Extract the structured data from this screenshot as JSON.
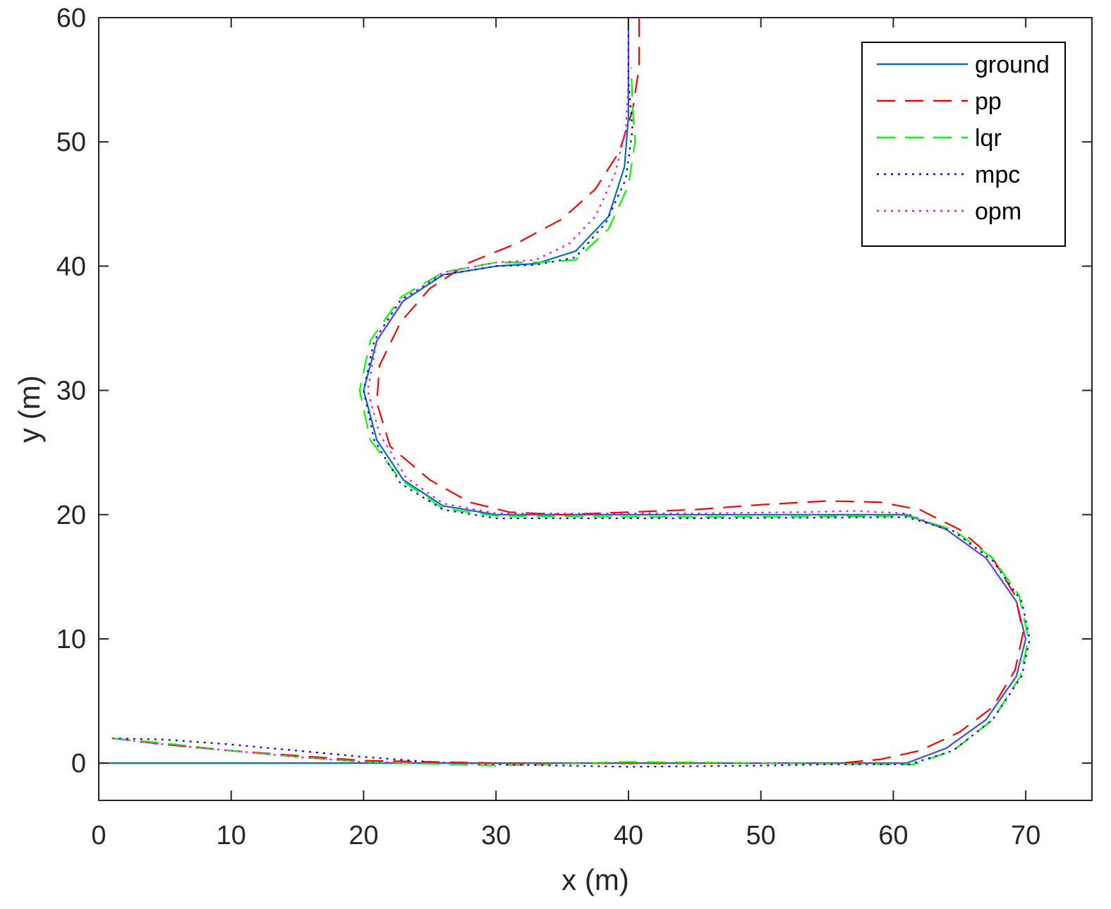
{
  "chart_data": {
    "type": "line",
    "title": "",
    "xlabel": "x (m)",
    "ylabel": "y (m)",
    "xlim": [
      0,
      75
    ],
    "ylim": [
      -3,
      60
    ],
    "xticks": [
      "0",
      "10",
      "20",
      "30",
      "40",
      "50",
      "60",
      "70"
    ],
    "yticks": [
      "0",
      "10",
      "20",
      "30",
      "40",
      "50",
      "60"
    ],
    "grid": false,
    "legend_position": "top-right",
    "series": [
      {
        "name": "ground",
        "color": "#0072BD",
        "style": "solid",
        "points": [
          [
            0,
            0
          ],
          [
            20,
            0
          ],
          [
            40,
            0
          ],
          [
            61,
            0
          ],
          [
            64,
            1.2
          ],
          [
            67,
            3.5
          ],
          [
            69.3,
            7
          ],
          [
            70,
            10
          ],
          [
            69.3,
            13
          ],
          [
            67,
            16.5
          ],
          [
            64,
            18.8
          ],
          [
            61,
            20
          ],
          [
            45,
            20
          ],
          [
            30,
            20
          ],
          [
            26,
            20.7
          ],
          [
            23,
            22.8
          ],
          [
            21,
            26
          ],
          [
            20,
            30
          ],
          [
            21,
            34
          ],
          [
            23,
            37.2
          ],
          [
            26,
            39.3
          ],
          [
            30,
            40
          ],
          [
            33,
            40.2
          ],
          [
            36,
            41.2
          ],
          [
            38.5,
            44
          ],
          [
            39.7,
            48
          ],
          [
            40,
            52
          ],
          [
            40,
            60
          ]
        ]
      },
      {
        "name": "pp",
        "color": "#FF0000",
        "style": "dashed",
        "points": [
          [
            1,
            2
          ],
          [
            5,
            1.5
          ],
          [
            10,
            1
          ],
          [
            15,
            0.6
          ],
          [
            20,
            0.2
          ],
          [
            30,
            0
          ],
          [
            40,
            0
          ],
          [
            50,
            0
          ],
          [
            56,
            0
          ],
          [
            59,
            0.3
          ],
          [
            62,
            1
          ],
          [
            65,
            2.5
          ],
          [
            67.5,
            4.5
          ],
          [
            69.2,
            7.5
          ],
          [
            69.8,
            10.5
          ],
          [
            69.2,
            13.5
          ],
          [
            67.5,
            16.5
          ],
          [
            65,
            18.8
          ],
          [
            62,
            20.4
          ],
          [
            59,
            21
          ],
          [
            55,
            21.1
          ],
          [
            50,
            20.8
          ],
          [
            45,
            20.4
          ],
          [
            40,
            20.2
          ],
          [
            35,
            20
          ],
          [
            31,
            20.2
          ],
          [
            28,
            21
          ],
          [
            25,
            22.8
          ],
          [
            22,
            25.5
          ],
          [
            21,
            29
          ],
          [
            21.2,
            32
          ],
          [
            22.8,
            35.5
          ],
          [
            25,
            38.2
          ],
          [
            28,
            40.3
          ],
          [
            31.5,
            41.8
          ],
          [
            35,
            43.8
          ],
          [
            37.5,
            46.2
          ],
          [
            39.3,
            49.2
          ],
          [
            40.3,
            52.5
          ],
          [
            40.8,
            56
          ],
          [
            40.8,
            60
          ]
        ]
      },
      {
        "name": "lqr",
        "color": "#00FF00",
        "style": "dashed",
        "points": [
          [
            1,
            2
          ],
          [
            5,
            1.6
          ],
          [
            10,
            1
          ],
          [
            15,
            0.5
          ],
          [
            20,
            0.1
          ],
          [
            30,
            -0.2
          ],
          [
            40,
            0.1
          ],
          [
            50,
            0
          ],
          [
            61.5,
            -0.1
          ],
          [
            64.5,
            1
          ],
          [
            67.5,
            3.5
          ],
          [
            69.6,
            7
          ],
          [
            70.2,
            10
          ],
          [
            69.5,
            13.5
          ],
          [
            67.5,
            16.5
          ],
          [
            64.5,
            18.8
          ],
          [
            61,
            19.9
          ],
          [
            45,
            19.8
          ],
          [
            30,
            19.9
          ],
          [
            26,
            20.5
          ],
          [
            22.8,
            22.8
          ],
          [
            20.5,
            26
          ],
          [
            19.7,
            30
          ],
          [
            20.5,
            34
          ],
          [
            22.8,
            37.5
          ],
          [
            26,
            39.5
          ],
          [
            30,
            40.3
          ],
          [
            33,
            40.3
          ],
          [
            36,
            40.5
          ],
          [
            38.5,
            43
          ],
          [
            40,
            46.5
          ],
          [
            40.5,
            50
          ],
          [
            40.3,
            53
          ],
          [
            40.2,
            56
          ]
        ]
      },
      {
        "name": "mpc",
        "color": "#0000FF",
        "style": "dotted",
        "points": [
          [
            1,
            2
          ],
          [
            5,
            1.9
          ],
          [
            10,
            1.5
          ],
          [
            15,
            1
          ],
          [
            20,
            0.5
          ],
          [
            25,
            0.1
          ],
          [
            30,
            -0.1
          ],
          [
            40,
            -0.3
          ],
          [
            50,
            -0.2
          ],
          [
            55,
            -0.1
          ],
          [
            61.2,
            -0.1
          ],
          [
            64.5,
            1
          ],
          [
            67.5,
            3.5
          ],
          [
            69.7,
            7
          ],
          [
            70.3,
            10
          ],
          [
            69.7,
            13
          ],
          [
            67.5,
            16.3
          ],
          [
            64.5,
            18.7
          ],
          [
            61,
            19.8
          ],
          [
            45,
            19.7
          ],
          [
            30,
            19.7
          ],
          [
            26,
            20.4
          ],
          [
            22.8,
            22.5
          ],
          [
            20.8,
            26
          ],
          [
            20,
            30
          ],
          [
            20.8,
            34
          ],
          [
            22.8,
            37.3
          ],
          [
            26,
            39.3
          ],
          [
            30,
            40
          ],
          [
            33,
            40.1
          ],
          [
            36,
            40.7
          ],
          [
            38.3,
            43.5
          ],
          [
            39.8,
            47
          ],
          [
            40.3,
            51
          ],
          [
            40,
            55
          ],
          [
            40,
            60
          ]
        ]
      },
      {
        "name": "opm",
        "color": "#FF00FF",
        "style": "dotted",
        "points": [
          [
            1,
            2
          ],
          [
            5,
            1.5
          ],
          [
            10,
            1
          ],
          [
            15,
            0.5
          ],
          [
            20,
            0.1
          ],
          [
            30,
            0
          ],
          [
            40,
            0
          ],
          [
            50,
            0
          ],
          [
            61,
            0
          ],
          [
            64,
            1.2
          ],
          [
            67,
            3.5
          ],
          [
            69.3,
            7
          ],
          [
            70,
            10
          ],
          [
            69.3,
            13
          ],
          [
            67,
            16.5
          ],
          [
            64,
            18.8
          ],
          [
            61,
            20.1
          ],
          [
            57,
            20.3
          ],
          [
            53,
            20.2
          ],
          [
            45,
            20.1
          ],
          [
            30,
            20.1
          ],
          [
            26,
            20.9
          ],
          [
            23.2,
            23
          ],
          [
            21.2,
            26.5
          ],
          [
            20.3,
            30
          ],
          [
            21,
            34
          ],
          [
            23,
            37.3
          ],
          [
            26,
            39.5
          ],
          [
            30,
            40.3
          ],
          [
            33,
            40.5
          ],
          [
            35.5,
            41.8
          ],
          [
            37.5,
            44
          ],
          [
            39,
            47.5
          ],
          [
            39.8,
            51
          ],
          [
            40,
            55
          ],
          [
            40,
            60
          ]
        ]
      }
    ]
  }
}
